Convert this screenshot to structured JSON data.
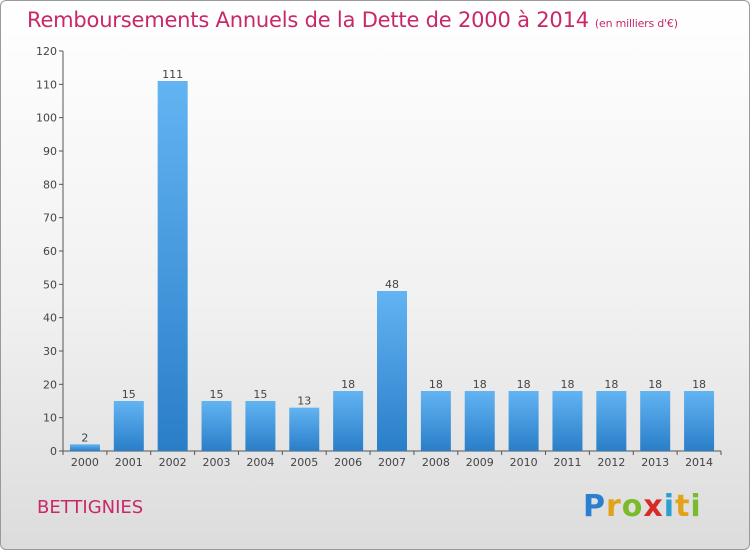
{
  "header": {
    "title": "Remboursements Annuels de la Dette de 2000 à 2014",
    "unit": "(en milliers d'€)"
  },
  "footer": {
    "commune": "BETTIGNIES",
    "brand": "Proxiti"
  },
  "colors": {
    "title": "#c8286a",
    "bar_light": "#5aaef0",
    "bar_dark": "#2a7ec8"
  },
  "chart_data": {
    "type": "bar",
    "title": "Remboursements Annuels de la Dette de 2000 à 2014",
    "xlabel": "",
    "ylabel": "",
    "categories": [
      "2000",
      "2001",
      "2002",
      "2003",
      "2004",
      "2005",
      "2006",
      "2007",
      "2008",
      "2009",
      "2010",
      "2011",
      "2012",
      "2013",
      "2014"
    ],
    "values": [
      2,
      15,
      111,
      15,
      15,
      13,
      18,
      48,
      18,
      18,
      18,
      18,
      18,
      18,
      18
    ],
    "ylim": [
      0,
      120
    ],
    "yticks": [
      0,
      10,
      20,
      30,
      40,
      50,
      60,
      70,
      80,
      90,
      100,
      110,
      120
    ],
    "grid": false,
    "data_labels": true
  }
}
